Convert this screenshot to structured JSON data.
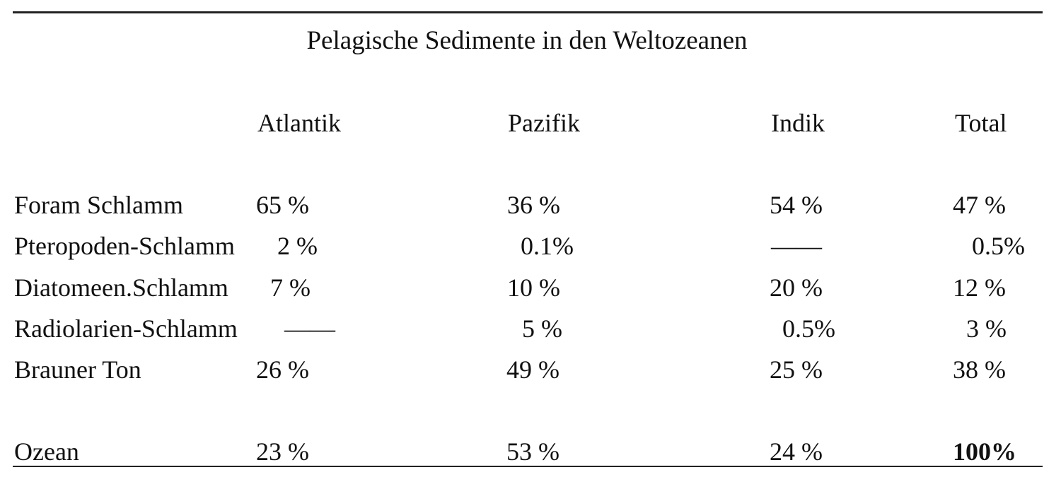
{
  "table": {
    "title": "Pelagische Sedimente in den Weltozeanen",
    "columns": [
      "Atlantik",
      "Pazifik",
      "Indik",
      "Total"
    ],
    "rows": [
      {
        "label": "Foram Schlamm",
        "values": [
          "65 %",
          "36 %",
          "54 %",
          "47 %"
        ]
      },
      {
        "label": "Pteropoden-Schlamm",
        "values": [
          "2 %",
          "0.1%",
          "——",
          "0.5%"
        ]
      },
      {
        "label": "Diatomeen.Schlamm",
        "values": [
          "7 %",
          "10 %",
          "20 %",
          "12 %"
        ]
      },
      {
        "label": "Radiolarien-Schlamm",
        "values": [
          "——",
          "5 %",
          "0.5%",
          "3 %"
        ]
      },
      {
        "label": "Brauner Ton",
        "values": [
          "26 %",
          "49 %",
          "25 %",
          "38 %"
        ]
      }
    ],
    "total_row": {
      "label": "Ozean",
      "values": [
        "23 %",
        "53 %",
        "24 %",
        "100%"
      ]
    }
  }
}
